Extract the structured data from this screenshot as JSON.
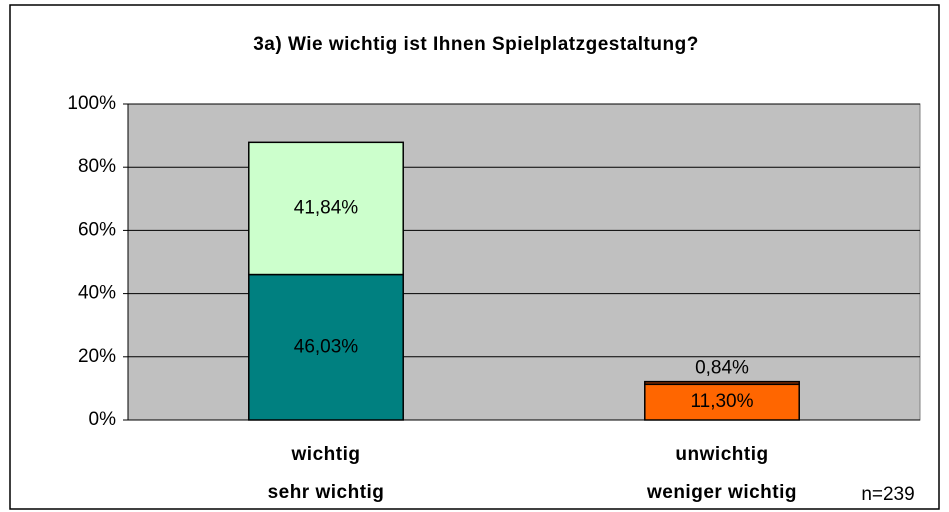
{
  "chart_data": {
    "type": "stacked_bar",
    "title": "3a) Wie wichtig ist Ihnen Spielplatzgestaltung?",
    "categories": [
      [
        "wichtig",
        "sehr wichtig"
      ],
      [
        "unwichtig",
        "weniger wichtig"
      ]
    ],
    "series": [
      {
        "colors": [
          "#008080",
          "#ff6600"
        ],
        "label_colors": [
          "#ffffff",
          "#000000"
        ],
        "values": [
          46.03,
          11.3
        ],
        "value_labels": [
          "46,03%",
          "11,30%"
        ]
      },
      {
        "colors": [
          "#ccffcc",
          "#993300"
        ],
        "label_colors": [
          "#000000",
          "#000000"
        ],
        "values": [
          41.84,
          0.84
        ],
        "value_labels": [
          "41,84%",
          "0,84%"
        ]
      }
    ],
    "ylim": [
      0,
      100
    ],
    "yticks": [
      {
        "value": 0,
        "label": "0%"
      },
      {
        "value": 20,
        "label": "20%"
      },
      {
        "value": 40,
        "label": "40%"
      },
      {
        "value": 60,
        "label": "60%"
      },
      {
        "value": 80,
        "label": "80%"
      },
      {
        "value": 100,
        "label": "100%"
      }
    ],
    "grid": true,
    "plot_background": "#c0c0c0",
    "annotation": "n=239"
  }
}
